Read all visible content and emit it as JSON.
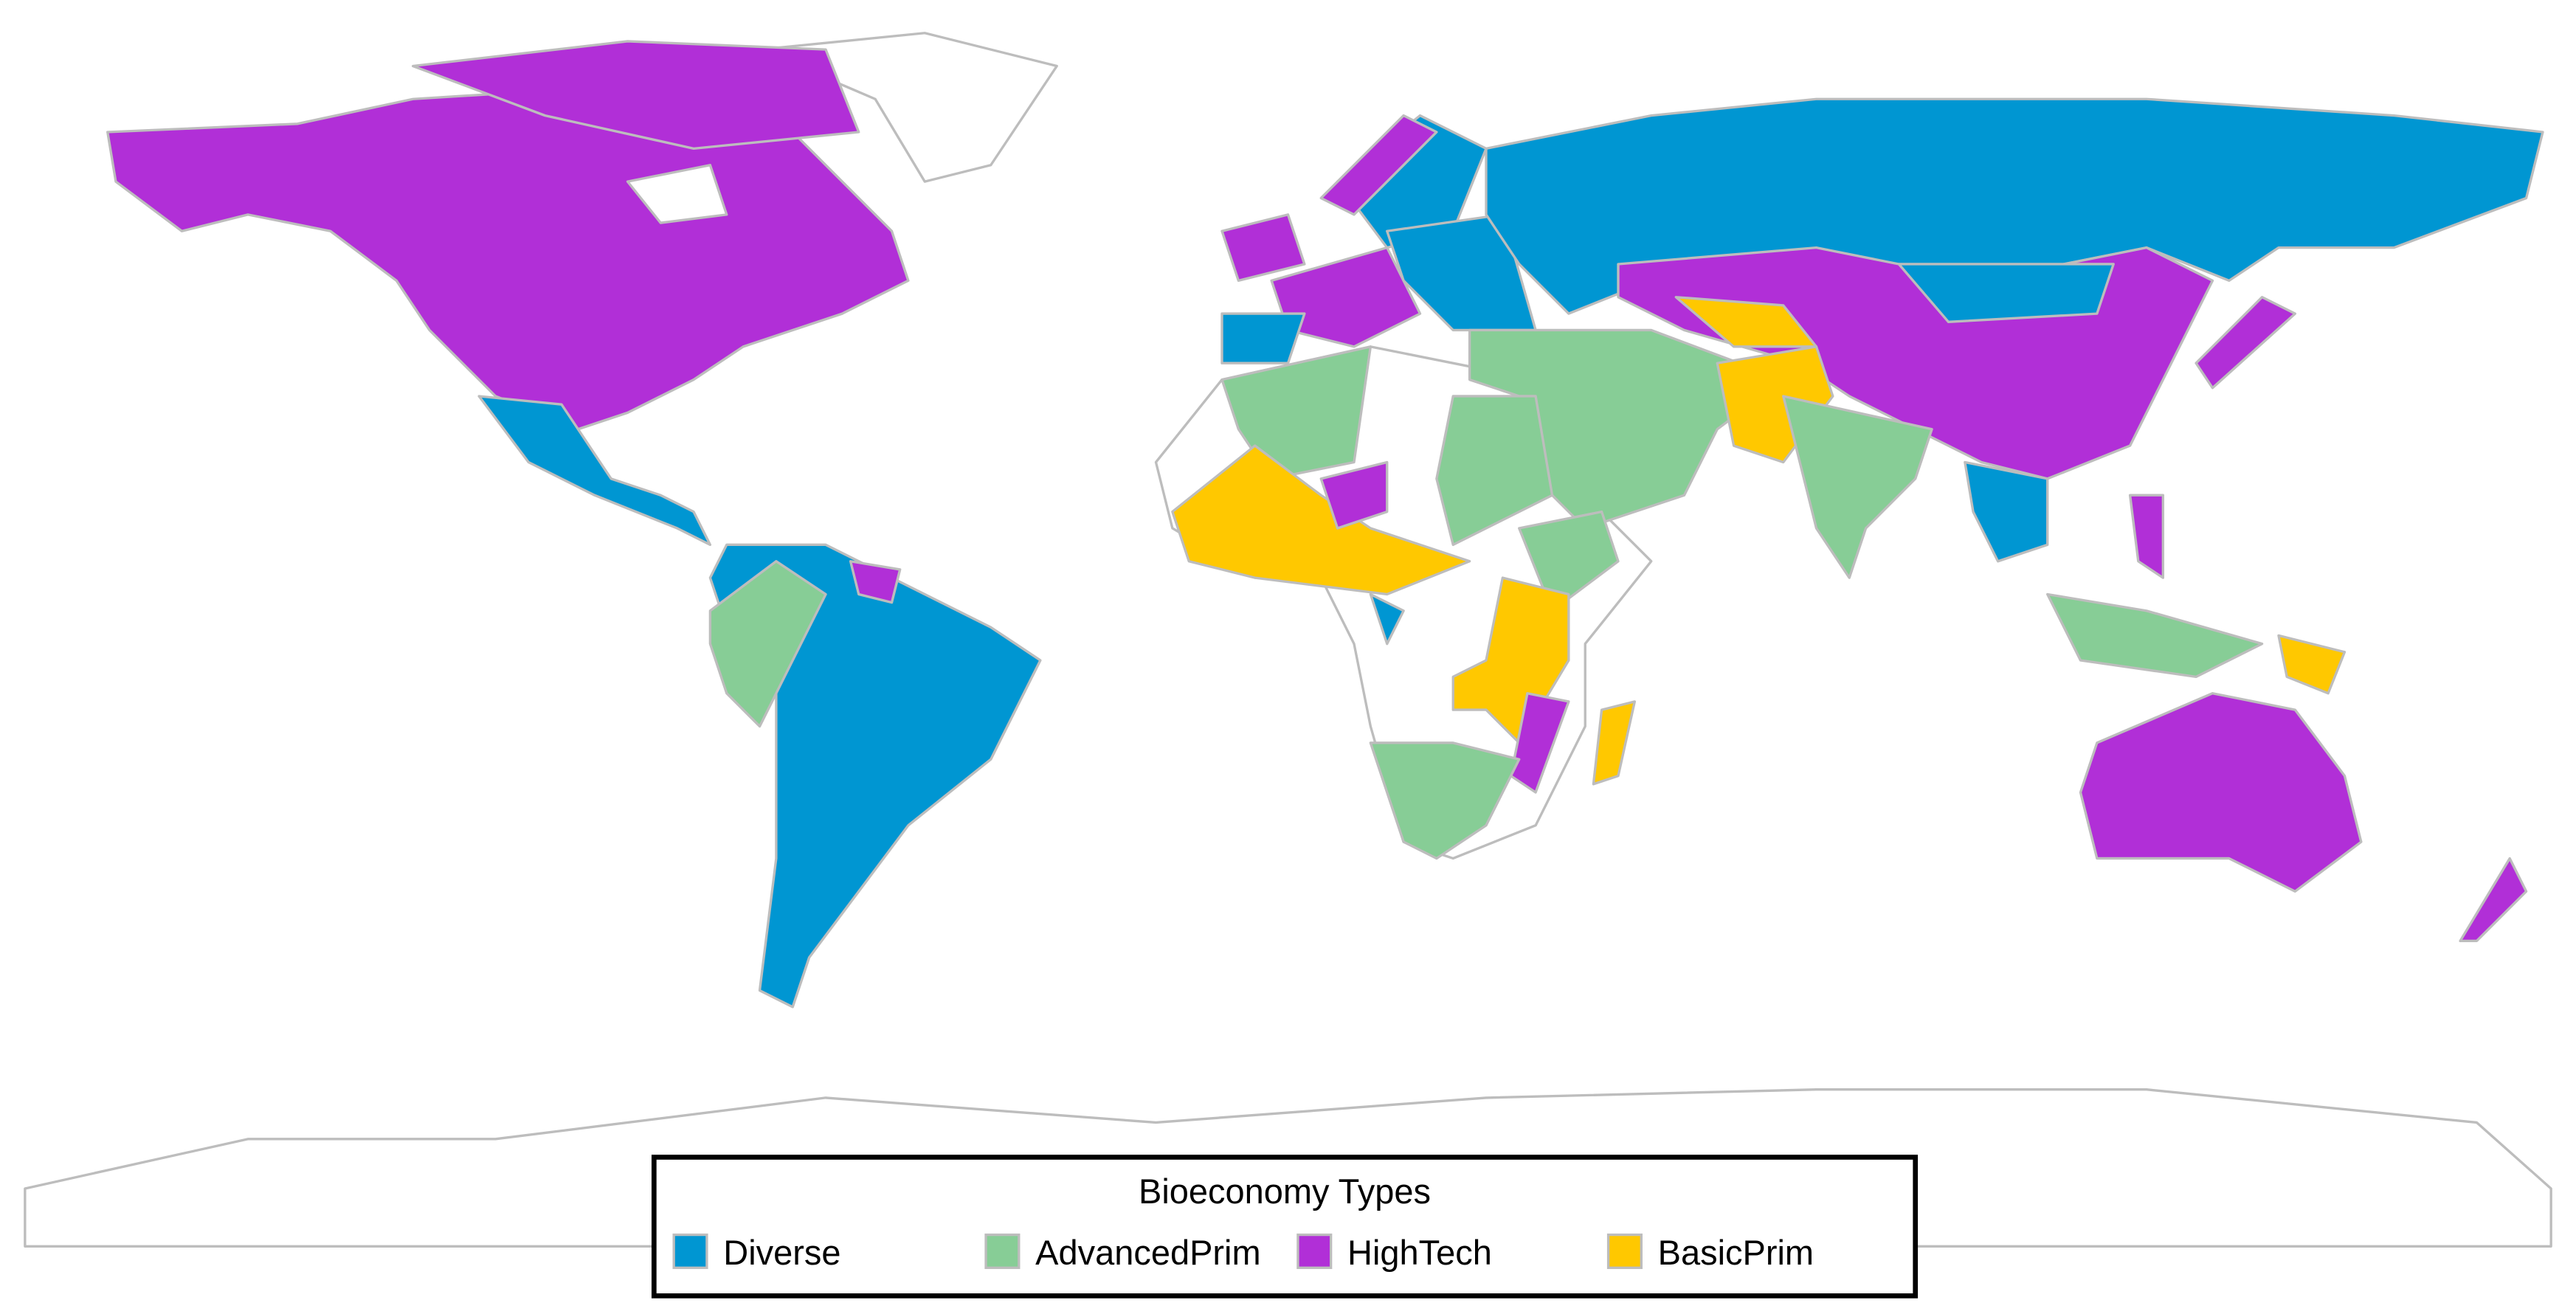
{
  "legend": {
    "title": "Bioeconomy Types",
    "items": [
      {
        "name": "Diverse",
        "color": "#0096d2"
      },
      {
        "name": "AdvancedPrim",
        "color": "#87cd96"
      },
      {
        "name": "HighTech",
        "color": "#b12fd7"
      },
      {
        "name": "BasicPrim",
        "color": "#ffc800"
      }
    ]
  }
}
